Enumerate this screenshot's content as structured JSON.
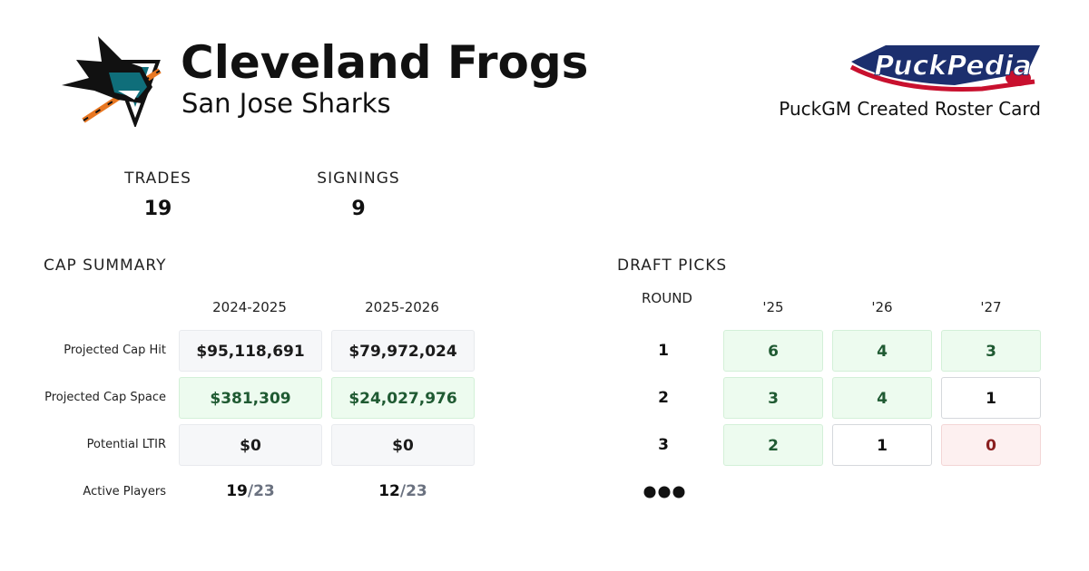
{
  "header": {
    "title": "Cleveland Frogs",
    "subtitle": "San Jose Sharks",
    "brand": "PuckPedia",
    "tagline": "PuckGM Created Roster Card"
  },
  "stats": [
    {
      "label": "TRADES",
      "value": "19"
    },
    {
      "label": "SIGNINGS",
      "value": "9"
    }
  ],
  "cap_summary": {
    "title": "CAP SUMMARY",
    "columns": [
      "2024-2025",
      "2025-2026"
    ],
    "rows": [
      {
        "label": "Projected Cap Hit",
        "values": [
          "$95,118,691",
          "$79,972,024"
        ]
      },
      {
        "label": "Projected Cap Space",
        "values": [
          "$381,309",
          "$24,027,976"
        ]
      },
      {
        "label": "Potential LTIR",
        "values": [
          "$0",
          "$0"
        ]
      }
    ],
    "active_players": {
      "label": "Active Players",
      "values": [
        {
          "count": "19",
          "max": "/23"
        },
        {
          "count": "12",
          "max": "/23"
        }
      ]
    }
  },
  "draft_picks": {
    "title": "DRAFT PICKS",
    "round_header": "ROUND",
    "columns": [
      "'25",
      "'26",
      "'27"
    ],
    "rows": [
      {
        "round": "1",
        "values": [
          "6",
          "4",
          "3"
        ]
      },
      {
        "round": "2",
        "values": [
          "3",
          "4",
          "1"
        ]
      },
      {
        "round": "3",
        "values": [
          "2",
          "1",
          "0"
        ]
      }
    ]
  }
}
